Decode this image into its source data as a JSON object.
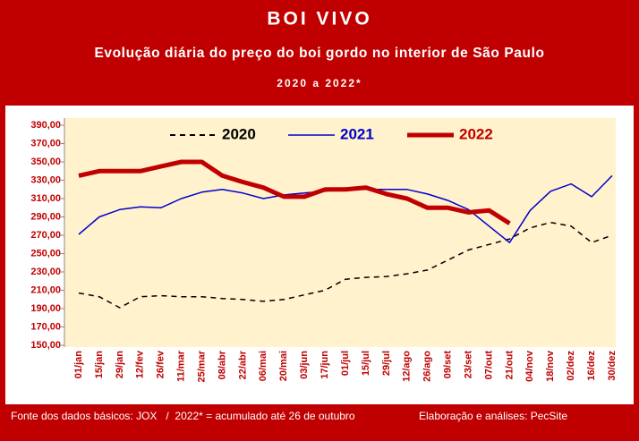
{
  "chart_data": {
    "type": "line",
    "title": "BOI VIVO",
    "subtitle": "Evolução diária do preço do boi gordo no interior de São Paulo",
    "period": "2020 a 2022*",
    "categories": [
      "01/jan",
      "15/jan",
      "29/jan",
      "12/fev",
      "26/fev",
      "11/mar",
      "25/mar",
      "08/abr",
      "22/abr",
      "06/mai",
      "20/mai",
      "03/jun",
      "17/jun",
      "01/jul",
      "15/jul",
      "29/jul",
      "12/ago",
      "26/ago",
      "09/set",
      "23/set",
      "07/out",
      "21/out",
      "04/nov",
      "18/nov",
      "02/dez",
      "16/dez",
      "30/dez"
    ],
    "series": [
      {
        "name": "2020",
        "color": "#000000",
        "style": "dashed",
        "values": [
          207,
          203,
          191,
          203,
          204,
          203,
          203,
          201,
          200,
          198,
          200,
          205,
          210,
          222,
          224,
          225,
          228,
          232,
          243,
          254,
          260,
          266,
          278,
          284,
          280,
          262,
          270
        ]
      },
      {
        "name": "2021",
        "color": "#0000cc",
        "style": "solid",
        "values": [
          271,
          290,
          298,
          301,
          300,
          310,
          317,
          320,
          316,
          310,
          314,
          316,
          318,
          320,
          320,
          320,
          320,
          315,
          308,
          298,
          280,
          262,
          297,
          318,
          326,
          312,
          335
        ]
      },
      {
        "name": "2022",
        "color": "#c00000",
        "style": "bold",
        "values": [
          335,
          340,
          340,
          340,
          345,
          350,
          350,
          335,
          328,
          322,
          312,
          312,
          320,
          320,
          322,
          315,
          310,
          300,
          300,
          295,
          297,
          283,
          null,
          null,
          null,
          null,
          null
        ]
      }
    ],
    "ylim": [
      150,
      390
    ],
    "yticks": [
      {
        "value": 150,
        "label": "150,00"
      },
      {
        "value": 170,
        "label": "170,00"
      },
      {
        "value": 190,
        "label": "190,00"
      },
      {
        "value": 210,
        "label": "210,00"
      },
      {
        "value": 230,
        "label": "230,00"
      },
      {
        "value": 250,
        "label": "250,00"
      },
      {
        "value": 270,
        "label": "270,00"
      },
      {
        "value": 290,
        "label": "290,00"
      },
      {
        "value": 310,
        "label": "310,00"
      },
      {
        "value": 330,
        "label": "330,00"
      },
      {
        "value": 350,
        "label": "350,00"
      },
      {
        "value": 370,
        "label": "370,00"
      },
      {
        "value": 390,
        "label": "390,00"
      }
    ],
    "legend": "top",
    "source": "Fonte dos dados básicos: JOX   /  2022* = acumulado até 26 de outubro",
    "credit": "Elaboração e análises: PecSite"
  }
}
